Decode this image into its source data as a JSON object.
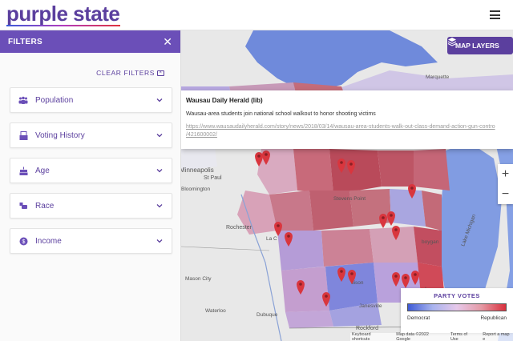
{
  "header": {
    "logo_part1": "purple st",
    "logo_part2": "ate",
    "menu_icon": "hamburger-menu-icon"
  },
  "sidebar": {
    "title": "FILTERS",
    "close_icon": "close-icon",
    "clear_label": "CLEAR FILTERS",
    "filters": [
      {
        "label": "Population",
        "icon": "people-icon"
      },
      {
        "label": "Voting History",
        "icon": "ballot-icon"
      },
      {
        "label": "Age",
        "icon": "cake-icon"
      },
      {
        "label": "Race",
        "icon": "hands-icon"
      },
      {
        "label": "Income",
        "icon": "dollar-icon"
      }
    ]
  },
  "map": {
    "layers_button": "MAP LAYERS",
    "info_window": {
      "title": "Wausau Daily Herald (lib)",
      "description": "Wausau-area students join national school walkout to honor shooting victims",
      "link_line1": "https://www.wausaudailyherald.com/story/news/2018/03/14/wausau-area-students-walk-out-class-demand-action-gun-contro",
      "link_line2": "/421600002/"
    },
    "zoom_in": "+",
    "zoom_out": "−",
    "labels": {
      "minneapolis": "Minneapolis",
      "st_paul": "St Paul",
      "bloomington": "Bloomington",
      "rochester": "Rochester",
      "mason_city": "Mason City",
      "waterloo": "Waterloo",
      "dubuque": "Dubuque",
      "rockford": "Rockford",
      "marquette": "Marquette",
      "lake_michigan": "Lake Michigan",
      "stevens_point": "Stevens Point",
      "la_crosse": "La C",
      "madison": "dison",
      "janesville": "Janesville",
      "milwaukee": "ukee",
      "sheboygan": "boygan"
    },
    "legend": {
      "title": "PARTY VOTES",
      "left": "Democrat",
      "right": "Republican",
      "colors": {
        "democrat": "#3e5bd6",
        "mid": "#e6c8ea",
        "republican": "#d9303d"
      }
    },
    "footer": [
      "Keyboard shortcuts",
      "Map data ©2022 Google",
      "Terms of Use",
      "Report a map e"
    ]
  }
}
